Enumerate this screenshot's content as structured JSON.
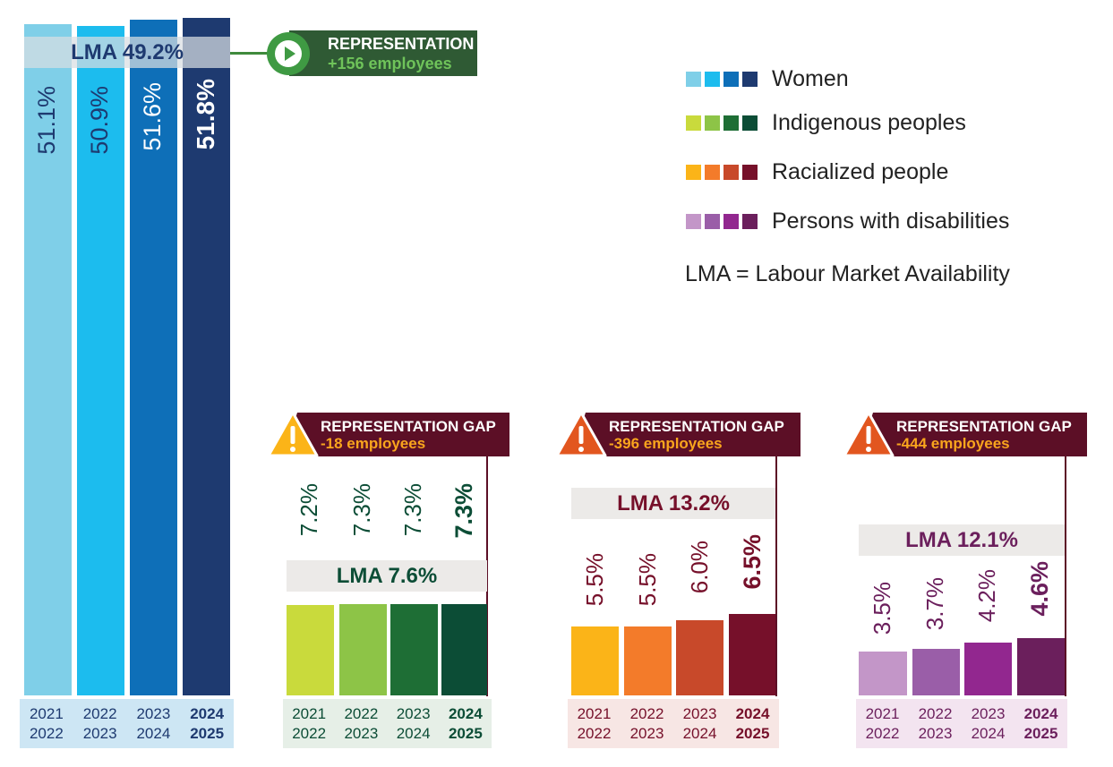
{
  "legend": {
    "items": [
      {
        "label": "Women",
        "swatches": [
          "#7fcfe8",
          "#1cbcee",
          "#0e6fb8",
          "#1e3a70"
        ]
      },
      {
        "label": "Indigenous peoples",
        "swatches": [
          "#c9da3c",
          "#8dc447",
          "#1e6e35",
          "#0c4d36"
        ]
      },
      {
        "label": "Racialized people",
        "swatches": [
          "#fbb418",
          "#f37b2a",
          "#c8492a",
          "#76102a"
        ]
      },
      {
        "label": "Persons with disabilities",
        "swatches": [
          "#c396c8",
          "#9a5ea8",
          "#92278f",
          "#6b1f5c"
        ]
      }
    ],
    "lma_note": "LMA = Labour Market Availability"
  },
  "chart_data": [
    {
      "type": "bar",
      "group": "Women",
      "categories": [
        "2021 2022",
        "2022 2023",
        "2023 2024",
        "2024 2025"
      ],
      "category_lines": [
        [
          "2021",
          "2022"
        ],
        [
          "2022",
          "2023"
        ],
        [
          "2023",
          "2024"
        ],
        [
          "2024",
          "2025"
        ]
      ],
      "values": [
        51.1,
        50.9,
        51.6,
        51.8
      ],
      "value_labels": [
        "51.1%",
        "50.9%",
        "51.6%",
        "51.8%"
      ],
      "colors": [
        "#7fcfe8",
        "#1cbcee",
        "#0e6fb8",
        "#1e3a70"
      ],
      "lma": 49.2,
      "lma_label": "LMA 49.2%",
      "callout": {
        "title": "REPRESENTATION",
        "subtitle": "+156 employees"
      }
    },
    {
      "type": "bar",
      "group": "Indigenous peoples",
      "categories": [
        "2021 2022",
        "2022 2023",
        "2023 2024",
        "2024 2025"
      ],
      "category_lines": [
        [
          "2021",
          "2022"
        ],
        [
          "2022",
          "2023"
        ],
        [
          "2023",
          "2024"
        ],
        [
          "2024",
          "2025"
        ]
      ],
      "values": [
        7.2,
        7.3,
        7.3,
        7.3
      ],
      "value_labels": [
        "7.2%",
        "7.3%",
        "7.3%",
        "7.3%"
      ],
      "colors": [
        "#c9da3c",
        "#8dc447",
        "#1e6e35",
        "#0c4d36"
      ],
      "lma": 7.6,
      "lma_label": "LMA 7.6%",
      "callout": {
        "title": "REPRESENTATION GAP",
        "subtitle": "-18 employees"
      }
    },
    {
      "type": "bar",
      "group": "Racialized people",
      "categories": [
        "2021 2022",
        "2022 2023",
        "2023 2024",
        "2024 2025"
      ],
      "category_lines": [
        [
          "2021",
          "2022"
        ],
        [
          "2022",
          "2023"
        ],
        [
          "2023",
          "2024"
        ],
        [
          "2024",
          "2025"
        ]
      ],
      "values": [
        5.5,
        5.5,
        6.0,
        6.5
      ],
      "value_labels": [
        "5.5%",
        "5.5%",
        "6.0%",
        "6.5%"
      ],
      "colors": [
        "#fbb418",
        "#f37b2a",
        "#c8492a",
        "#76102a"
      ],
      "lma": 13.2,
      "lma_label": "LMA 13.2%",
      "callout": {
        "title": "REPRESENTATION GAP",
        "subtitle": "-396 employees"
      }
    },
    {
      "type": "bar",
      "group": "Persons with disabilities",
      "categories": [
        "2021 2022",
        "2022 2023",
        "2023 2024",
        "2024 2025"
      ],
      "category_lines": [
        [
          "2021",
          "2022"
        ],
        [
          "2022",
          "2023"
        ],
        [
          "2023",
          "2024"
        ],
        [
          "2024",
          "2025"
        ]
      ],
      "values": [
        3.5,
        3.7,
        4.2,
        4.6
      ],
      "value_labels": [
        "3.5%",
        "3.7%",
        "4.2%",
        "4.6%"
      ],
      "colors": [
        "#c396c8",
        "#9a5ea8",
        "#92278f",
        "#6b1f5c"
      ],
      "lma": 12.1,
      "lma_label": "LMA 12.1%",
      "callout": {
        "title": "REPRESENTATION GAP",
        "subtitle": "-444 employees"
      }
    }
  ]
}
